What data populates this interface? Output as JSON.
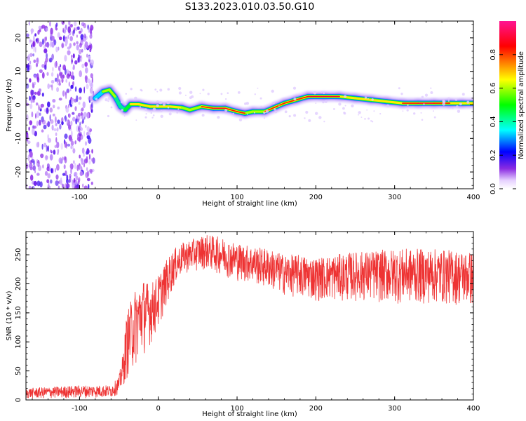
{
  "title": "S133.2023.010.03.50.G10",
  "chart_data": [
    {
      "type": "heatmap",
      "xlabel": "Height of straight line (km)",
      "ylabel": "Frequency (Hz)",
      "xlim": [
        -168,
        400
      ],
      "ylim": [
        -25,
        25
      ],
      "x_ticks": [
        -100,
        0,
        100,
        200,
        300,
        400
      ],
      "y_ticks": [
        -20,
        -10,
        0,
        10,
        20
      ],
      "colorbar": {
        "label": "Normalized spectral amplitude",
        "range": [
          0,
          1
        ],
        "ticks": [
          "0.0",
          "0.2",
          "0.4",
          "0.6",
          "0.8"
        ],
        "colors": [
          "#ffffff",
          "#8a2be2",
          "#0000ff",
          "#00ffff",
          "#00ff00",
          "#ffff00",
          "#ff0000",
          "#ff1493"
        ]
      },
      "noise_region": {
        "x_range": [
          -168,
          -82
        ],
        "freq_range": [
          -25,
          25
        ],
        "amplitude": 0.2
      },
      "ridge": [
        {
          "x": -80,
          "f": 2.0,
          "amp": 0.5
        },
        {
          "x": -70,
          "f": 4.0,
          "amp": 0.7
        },
        {
          "x": -62,
          "f": 4.5,
          "amp": 0.75
        },
        {
          "x": -55,
          "f": 2.5,
          "amp": 0.7
        },
        {
          "x": -48,
          "f": -0.5,
          "amp": 0.55
        },
        {
          "x": -42,
          "f": -1.5,
          "amp": 0.6
        },
        {
          "x": -35,
          "f": 0.2,
          "amp": 0.8
        },
        {
          "x": -25,
          "f": 0.2,
          "amp": 0.8
        },
        {
          "x": -10,
          "f": -0.5,
          "amp": 0.75
        },
        {
          "x": 0,
          "f": -0.5,
          "amp": 0.9
        },
        {
          "x": 15,
          "f": -0.5,
          "amp": 0.8
        },
        {
          "x": 30,
          "f": -0.8,
          "amp": 0.85
        },
        {
          "x": 40,
          "f": -1.5,
          "amp": 0.7
        },
        {
          "x": 55,
          "f": -0.5,
          "amp": 0.85
        },
        {
          "x": 70,
          "f": -1.0,
          "amp": 0.9
        },
        {
          "x": 85,
          "f": -1.0,
          "amp": 0.9
        },
        {
          "x": 100,
          "f": -2.0,
          "amp": 0.85
        },
        {
          "x": 110,
          "f": -2.5,
          "amp": 0.9
        },
        {
          "x": 120,
          "f": -2.0,
          "amp": 0.7
        },
        {
          "x": 135,
          "f": -2.0,
          "amp": 0.85
        },
        {
          "x": 150,
          "f": -0.5,
          "amp": 0.85
        },
        {
          "x": 160,
          "f": 0.5,
          "amp": 0.85
        },
        {
          "x": 175,
          "f": 1.5,
          "amp": 0.85
        },
        {
          "x": 190,
          "f": 2.5,
          "amp": 0.9
        },
        {
          "x": 210,
          "f": 2.5,
          "amp": 0.95
        },
        {
          "x": 230,
          "f": 2.5,
          "amp": 0.9
        },
        {
          "x": 250,
          "f": 2.0,
          "amp": 0.8
        },
        {
          "x": 270,
          "f": 1.5,
          "amp": 0.9
        },
        {
          "x": 290,
          "f": 1.0,
          "amp": 0.75
        },
        {
          "x": 310,
          "f": 0.5,
          "amp": 0.85
        },
        {
          "x": 330,
          "f": 0.5,
          "amp": 0.9
        },
        {
          "x": 350,
          "f": 0.5,
          "amp": 0.9
        },
        {
          "x": 370,
          "f": 0.5,
          "amp": 0.85
        },
        {
          "x": 385,
          "f": 0.5,
          "amp": 0.8
        },
        {
          "x": 400,
          "f": 0.5,
          "amp": 0.75
        }
      ]
    },
    {
      "type": "line",
      "xlabel": "Height of straight line (km)",
      "ylabel": "SNR (10 * v/v)",
      "xlim": [
        -168,
        400
      ],
      "ylim": [
        0,
        290
      ],
      "x_ticks": [
        -100,
        0,
        100,
        200,
        300,
        400
      ],
      "y_ticks": [
        0,
        50,
        100,
        150,
        200,
        250
      ],
      "color": "#ee3333",
      "envelope": {
        "x": [
          -168,
          -100,
          -60,
          -50,
          -45,
          -40,
          -30,
          -20,
          -10,
          0,
          10,
          20,
          30,
          40,
          60,
          80,
          100,
          120,
          140,
          160,
          180,
          200,
          250,
          300,
          350,
          400
        ],
        "low": [
          2,
          3,
          4,
          10,
          20,
          35,
          55,
          75,
          95,
          120,
          160,
          195,
          215,
          220,
          225,
          215,
          205,
          200,
          190,
          180,
          175,
          170,
          170,
          165,
          165,
          160
        ],
        "high": [
          20,
          25,
          25,
          40,
          80,
          150,
          190,
          210,
          200,
          215,
          240,
          260,
          270,
          275,
          285,
          280,
          270,
          265,
          260,
          250,
          250,
          245,
          255,
          260,
          260,
          255
        ]
      }
    }
  ]
}
